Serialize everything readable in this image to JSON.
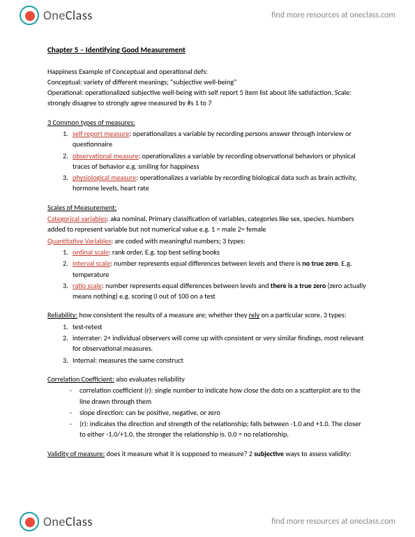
{
  "brand": {
    "name1": "One",
    "name2": "Class",
    "tagline": "find more resources at oneclass.com"
  },
  "title": "Chapter 5 – Identifying Good Measurement",
  "intro": {
    "l1": "Happiness Example of Conceptual and operational defs:",
    "l2": "Conceptual: variety of different meanings; \"subjective well-being\"",
    "l3": "Operational: operationalized subjective well-being with self report 5 item list about life satisfaction. Scale: strongly disagree to strongly agree measured by #s 1 to 7"
  },
  "sec1": {
    "head": "3 Common types of measures:",
    "items": [
      {
        "term": "self report measure",
        "body": ": operationalizes a variable by recording persons answer through interview or questionnaire"
      },
      {
        "term": "observational measure",
        "body": ": operationalizes a variable by recording observational behaviors or physical traces of behavior e.g. smiling for happiness"
      },
      {
        "term": "physiological measure",
        "body": ": operationalizes a variable by recording biological data such as brain activity, hormone levels, heart rate"
      }
    ]
  },
  "sec2": {
    "head": "Scales of Measurement:",
    "cat": {
      "term": "Categorical variables",
      "body": ": aka nominal. Primary classification of variables, categories like sex, species. Numbers added to represent variable but not numerical value e.g. 1 = male 2= female"
    },
    "quant": {
      "term": "Quantitative Variables",
      "body": ": are coded with meaningful numbers; 3 types:"
    },
    "items": [
      {
        "term": "ordinal scale",
        "body": ": rank order. E.g. top best selling books"
      },
      {
        "term": "interval scale",
        "body": ": number represents equal differences between levels and there is ",
        "bold": "no true zero",
        "body2": ". E.g. temperature"
      },
      {
        "term": "ratio scale",
        "body": ": number represents equal differences between levels and ",
        "bold": "there is a true zero",
        "body2": " (zero actually means nothing) e.g. scoring 0 out of 100 on a test"
      }
    ]
  },
  "sec3": {
    "head": "Reliability:",
    "intro": " how consistent the results of a measure are; whether they ",
    "rely": "rely",
    "intro2": " on a particular score. 3 types:",
    "items": [
      "test-retest",
      "interrater: 2+ individual observers will come up with consistent or very similar findings, most relevant for observational measures.",
      "Internal: measures the same construct"
    ]
  },
  "sec4": {
    "head": "Correlation Coefficient:",
    "intro": " also evaluates reliability",
    "items": [
      "correlation coefficient (r): single number to indicate how close the dots on a scatterplot are to the line drawn through them",
      "slope direction: can be positive, negative, or zero",
      "(r): indicates the direction and strength of the relationship; falls between -1.0 and +1.0. The closer to either -1.0/+1.0, the stronger the relationship is. 0.0 = no relationship."
    ]
  },
  "sec5": {
    "head": "Validity of measure:",
    "body1": " does it measure what it is supposed to measure? 2 ",
    "bold": "subjective",
    "body2": " ways to assess validity:"
  }
}
